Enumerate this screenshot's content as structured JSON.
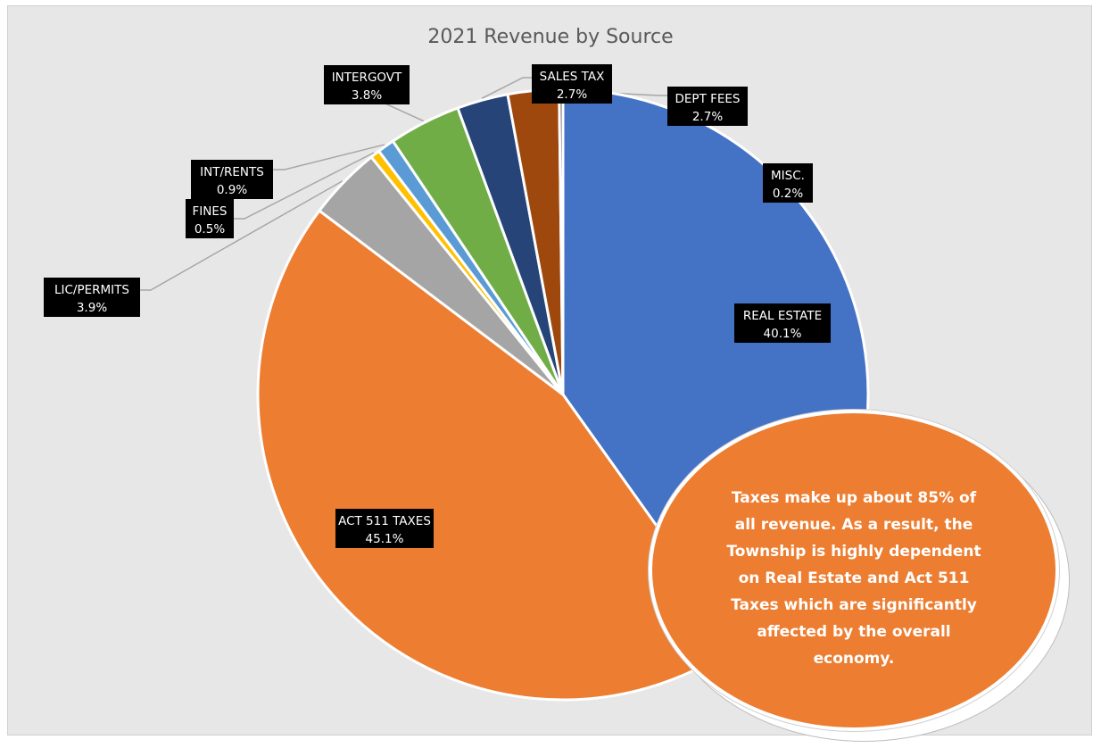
{
  "chart_data": {
    "type": "pie",
    "title": "2021 Revenue by Source",
    "start_angle_deg": 0,
    "direction": "clockwise",
    "slices": [
      {
        "name": "REAL ESTATE",
        "value": 40.1,
        "pct_label": "40.1%",
        "color": "#4472c4"
      },
      {
        "name": "ACT 511 TAXES",
        "value": 45.1,
        "pct_label": "45.1%",
        "color": "#ed7d31"
      },
      {
        "name": "LIC/PERMITS",
        "value": 3.9,
        "pct_label": "3.9%",
        "color": "#a5a5a5"
      },
      {
        "name": "FINES",
        "value": 0.5,
        "pct_label": "0.5%",
        "color": "#ffc000"
      },
      {
        "name": "INT/RENTS",
        "value": 0.9,
        "pct_label": "0.9%",
        "color": "#5b9bd5"
      },
      {
        "name": "INTERGOVT",
        "value": 3.8,
        "pct_label": "3.8%",
        "color": "#70ad47"
      },
      {
        "name": "SALES TAX",
        "value": 2.7,
        "pct_label": "2.7%",
        "color": "#264478"
      },
      {
        "name": "DEPT FEES",
        "value": 2.7,
        "pct_label": "2.7%",
        "color": "#9e480e"
      },
      {
        "name": "MISC.",
        "value": 0.2,
        "pct_label": "0.2%",
        "color": "#636363"
      }
    ],
    "label_background": "#000000",
    "label_text_color": "#ffffff",
    "leader_line_color": "#a6a6a6",
    "background": "#e7e7e7"
  },
  "callout": {
    "text": "Taxes make up about 85% of all revenue.  As a result, the Township is highly dependent on Real Estate and Act 511 Taxes which are significantly affected by the overall economy.",
    "color": "#ed7d31"
  }
}
